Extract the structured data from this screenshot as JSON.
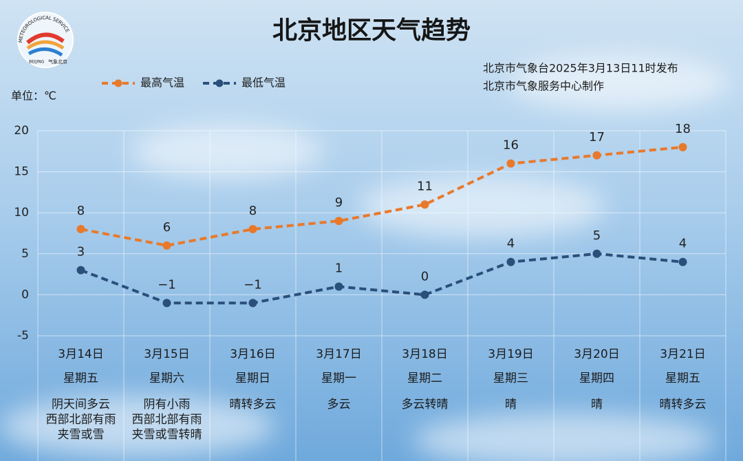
{
  "chart_data": {
    "type": "line",
    "title": "北京地区天气趋势",
    "publisher": [
      "北京市气象台2025年3月13日11时发布",
      "北京市气象服务中心制作"
    ],
    "unit_label": "单位：℃",
    "logo_text": [
      "METEOROLOGICAL SERVICE",
      "BEIJING",
      "气象北京"
    ],
    "categories": [
      "3月14日",
      "3月15日",
      "3月16日",
      "3月17日",
      "3月18日",
      "3月19日",
      "3月20日",
      "3月21日"
    ],
    "weekdays": [
      "星期五",
      "星期六",
      "星期日",
      "星期一",
      "星期二",
      "星期三",
      "星期四",
      "星期五"
    ],
    "weather": [
      [
        "阴天间多云",
        "西部北部有雨",
        "夹雪或雪"
      ],
      [
        "阴有小雨",
        "西部北部有雨",
        "夹雪或雪转晴"
      ],
      [
        "晴转多云"
      ],
      [
        "多云"
      ],
      [
        "多云转晴"
      ],
      [
        "晴"
      ],
      [
        "晴"
      ],
      [
        "晴转多云"
      ]
    ],
    "series": [
      {
        "name": "最高气温",
        "color": "#e8792b",
        "values": [
          8,
          6,
          8,
          9,
          11,
          16,
          17,
          18
        ]
      },
      {
        "name": "最低气温",
        "color": "#2a4f7a",
        "values": [
          3,
          -1,
          -1,
          1,
          0,
          4,
          5,
          4
        ],
        "value_labels": [
          "3",
          "−1",
          "−1",
          "1",
          "0",
          "4",
          "5",
          "4"
        ]
      }
    ],
    "ylim": [
      -5,
      20
    ],
    "yticks": [
      -5,
      0,
      5,
      10,
      15,
      20
    ],
    "grid": true,
    "legend": "top-left"
  }
}
